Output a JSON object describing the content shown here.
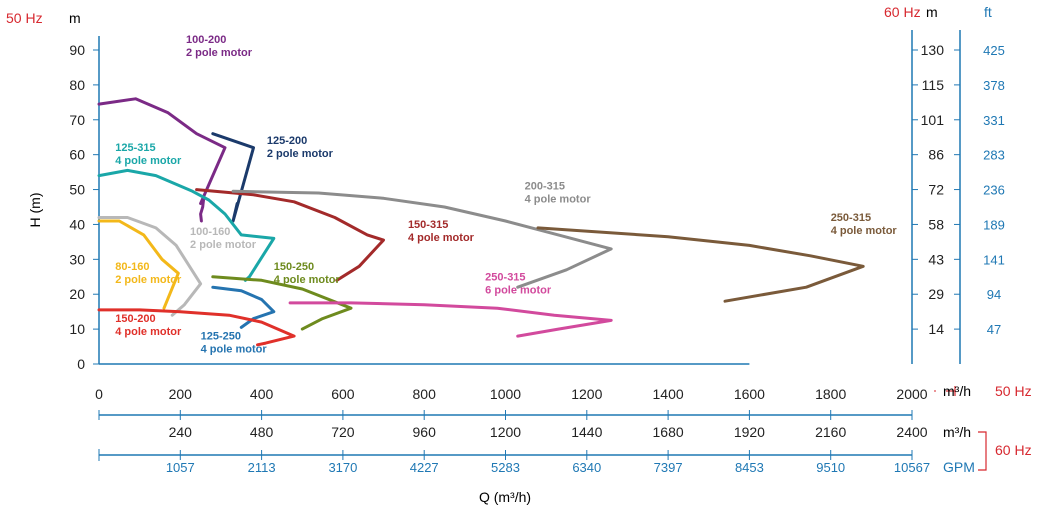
{
  "colors": {
    "red": "#d7282f",
    "blue": "#1f78b4",
    "dark": "#222222",
    "grid": "#c6dceb"
  },
  "chart_data": {
    "type": "line",
    "xlabel": "Q (m³/h)",
    "ylabel": "H (m)",
    "xlim": [
      0,
      2000
    ],
    "ylim": [
      0,
      90
    ],
    "x_ticks": [
      0,
      200,
      400,
      600,
      800,
      1000,
      1200,
      1400,
      1600,
      1800,
      2000
    ],
    "y_ticks": [
      0,
      10,
      20,
      30,
      40,
      50,
      60,
      70,
      80,
      90
    ],
    "unit_left_top_hz": "50 Hz",
    "unit_left_top_m": "m",
    "unit_right_hz": "60 Hz",
    "unit_right_m": "m",
    "unit_right_ft": "ft",
    "right_m_ticks": [
      {
        "label": "130",
        "at": 90
      },
      {
        "label": "115",
        "at": 80
      },
      {
        "label": "101",
        "at": 70
      },
      {
        "label": "86",
        "at": 60
      },
      {
        "label": "72",
        "at": 50
      },
      {
        "label": "58",
        "at": 40
      },
      {
        "label": "43",
        "at": 30
      },
      {
        "label": "29",
        "at": 20
      },
      {
        "label": "14",
        "at": 10
      }
    ],
    "right_ft_ticks": [
      {
        "label": "425",
        "at": 90
      },
      {
        "label": "378",
        "at": 80
      },
      {
        "label": "331",
        "at": 70
      },
      {
        "label": "283",
        "at": 60
      },
      {
        "label": "236",
        "at": 50
      },
      {
        "label": "189",
        "at": 40
      },
      {
        "label": "141",
        "at": 30
      },
      {
        "label": "94",
        "at": 20
      },
      {
        "label": "47",
        "at": 10
      }
    ],
    "x_unit_50": "m³/h",
    "x_hz_50": "50 Hz",
    "axis_60_m3h": {
      "unit": "m³/h",
      "ticks": [
        "240",
        "480",
        "720",
        "960",
        "1200",
        "1440",
        "1680",
        "1920",
        "2160",
        "2400"
      ]
    },
    "axis_60_gpm": {
      "unit": "GPM",
      "ticks": [
        "1057",
        "2113",
        "3170",
        "4227",
        "5283",
        "6340",
        "7397",
        "8453",
        "9510",
        "10567"
      ]
    },
    "axis_60_hz": "60 Hz",
    "series": [
      {
        "name": "100-200",
        "sub": "2 pole motor",
        "color": "#7b2a86",
        "points": [
          [
            0,
            74.5
          ],
          [
            90,
            76
          ],
          [
            170,
            72
          ],
          [
            240,
            66
          ],
          [
            310,
            62
          ],
          [
            250,
            46
          ],
          [
            258,
            48
          ],
          [
            255,
            45
          ],
          [
            250,
            43
          ],
          [
            252,
            41
          ]
        ],
        "label_at": [
          214,
          92
        ]
      },
      {
        "name": "125-200",
        "sub": "2 pole motor",
        "color": "#1b3a6b",
        "points": [
          [
            280,
            66
          ],
          [
            380,
            62
          ],
          [
            330,
            41
          ],
          [
            340,
            46
          ]
        ],
        "label_at": [
          413,
          63
        ]
      },
      {
        "name": "125-315",
        "sub": "4 pole motor",
        "color": "#1aa7a8",
        "points": [
          [
            0,
            54
          ],
          [
            70,
            55.5
          ],
          [
            140,
            54
          ],
          [
            230,
            49.5
          ],
          [
            270,
            47
          ],
          [
            310,
            43
          ],
          [
            350,
            37
          ],
          [
            430,
            36
          ],
          [
            370,
            25
          ],
          [
            360,
            24
          ]
        ],
        "label_at": [
          40,
          61
        ]
      },
      {
        "name": "150-315",
        "sub": "4 pole motor",
        "color": "#a32a2a",
        "points": [
          [
            240,
            50
          ],
          [
            380,
            48.5
          ],
          [
            480,
            46.5
          ],
          [
            580,
            42
          ],
          [
            660,
            37
          ],
          [
            700,
            35.5
          ],
          [
            640,
            28
          ],
          [
            585,
            24
          ]
        ],
        "label_at": [
          760,
          39
        ]
      },
      {
        "name": "200-315",
        "sub": "4 pole motor",
        "color": "#8c8c8c",
        "points": [
          [
            330,
            49.5
          ],
          [
            540,
            49
          ],
          [
            700,
            47.5
          ],
          [
            850,
            45
          ],
          [
            1000,
            41
          ],
          [
            1130,
            37
          ],
          [
            1260,
            33
          ],
          [
            1150,
            27
          ],
          [
            1030,
            22
          ]
        ],
        "label_at": [
          1047,
          50
        ]
      },
      {
        "name": "250-315",
        "sub": "4 pole motor",
        "color": "#7a5a3a",
        "points": [
          [
            1080,
            39
          ],
          [
            1400,
            36.5
          ],
          [
            1600,
            34
          ],
          [
            1750,
            31
          ],
          [
            1880,
            28
          ],
          [
            1740,
            22
          ],
          [
            1540,
            18
          ]
        ],
        "label_at": [
          1800,
          41
        ]
      },
      {
        "name": "100-160",
        "sub": "2 pole motor",
        "color": "#b8b8b8",
        "points": [
          [
            0,
            42
          ],
          [
            70,
            42
          ],
          [
            140,
            39
          ],
          [
            190,
            34
          ],
          [
            250,
            23
          ],
          [
            210,
            17
          ],
          [
            180,
            14
          ]
        ],
        "label_at": [
          224,
          37
        ]
      },
      {
        "name": "80-160",
        "sub": "2 pole motor",
        "color": "#f3b81a",
        "points": [
          [
            0,
            41
          ],
          [
            50,
            41
          ],
          [
            110,
            37
          ],
          [
            155,
            30
          ],
          [
            195,
            26
          ],
          [
            160,
            16
          ]
        ],
        "label_at": [
          40,
          27
        ]
      },
      {
        "name": "150-250",
        "sub": "4 pole motor",
        "color": "#6e8b1e",
        "points": [
          [
            280,
            25
          ],
          [
            400,
            24
          ],
          [
            500,
            21.5
          ],
          [
            620,
            16
          ],
          [
            550,
            13
          ],
          [
            500,
            10
          ]
        ],
        "label_at": [
          430,
          27
        ]
      },
      {
        "name": "125-250",
        "sub": "4 pole motor",
        "color": "#2574b0",
        "points": [
          [
            280,
            22
          ],
          [
            350,
            21
          ],
          [
            400,
            18.5
          ],
          [
            430,
            15
          ],
          [
            380,
            13
          ],
          [
            350,
            10.5
          ]
        ],
        "label_at": [
          250,
          7
        ]
      },
      {
        "name": "150-200",
        "sub": "4 pole motor",
        "color": "#e0302a",
        "points": [
          [
            0,
            15.5
          ],
          [
            100,
            15.5
          ],
          [
            200,
            15
          ],
          [
            320,
            14
          ],
          [
            400,
            12
          ],
          [
            480,
            8
          ],
          [
            410,
            6
          ],
          [
            390,
            5.5
          ]
        ],
        "label_at": [
          40,
          12
        ]
      },
      {
        "name": "250-315",
        "sub": "6 pole motor",
        "color": "#d24a9d",
        "points": [
          [
            470,
            17.5
          ],
          [
            620,
            17.5
          ],
          [
            800,
            17
          ],
          [
            980,
            16
          ],
          [
            1120,
            14
          ],
          [
            1260,
            12.5
          ],
          [
            1130,
            10
          ],
          [
            1030,
            8
          ]
        ],
        "label_at": [
          950,
          24
        ]
      }
    ]
  }
}
